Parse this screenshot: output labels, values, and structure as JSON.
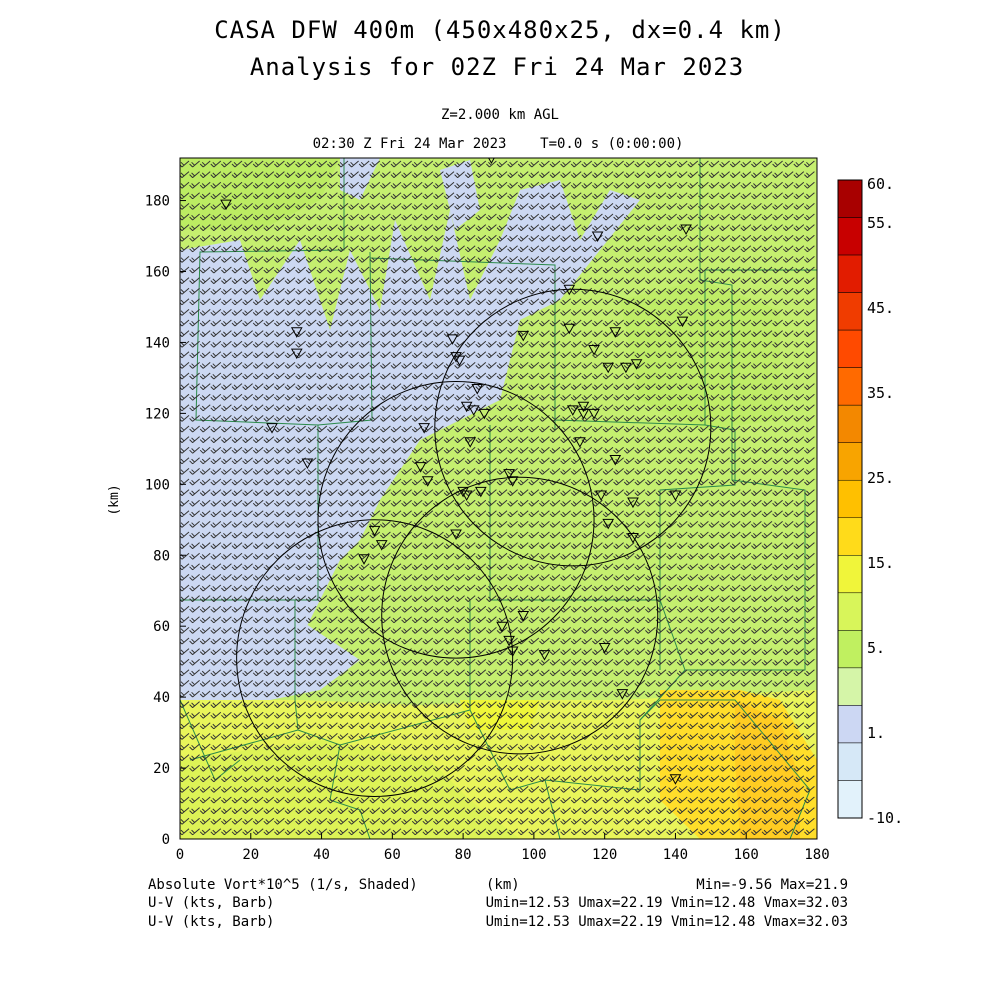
{
  "header": {
    "title": "CASA DFW 400m (450x480x25, dx=0.4 km)",
    "subtitle": "Analysis for 02Z Fri 24 Mar 2023",
    "level": "Z=2.000 km AGL",
    "time": "02:30 Z Fri 24 Mar 2023    T=0.0 s (0:00:00)"
  },
  "axes": {
    "x_ticks": [
      "0",
      "20",
      "40",
      "60",
      "80",
      "100",
      "120",
      "140",
      "160",
      "180"
    ],
    "y_ticks": [
      "0",
      "20",
      "40",
      "60",
      "80",
      "100",
      "120",
      "140",
      "160",
      "180"
    ],
    "x_label": "(km)",
    "y_label": "(km)",
    "xlim": [
      0,
      180
    ],
    "ylim": [
      0,
      192
    ]
  },
  "colorbar": {
    "labels": [
      "60.",
      "55.",
      "45.",
      "35.",
      "25.",
      "15.",
      "5.",
      "1.",
      "-10."
    ],
    "colors": [
      "#a80000",
      "#c80000",
      "#e21c00",
      "#f03c00",
      "#ff4a00",
      "#ff6a00",
      "#f38800",
      "#f8a400",
      "#ffc000",
      "#ffdb1a",
      "#f0f53a",
      "#d8f55a",
      "#c0f060",
      "#d5f5a8",
      "#ccd7f3",
      "#d6e8f7",
      "#e2f2fb"
    ]
  },
  "radars": [
    {
      "cx": 111,
      "cy": 116,
      "r": 39
    },
    {
      "cx": 78,
      "cy": 90,
      "r": 39
    },
    {
      "cx": 96,
      "cy": 63,
      "r": 39
    },
    {
      "cx": 55,
      "cy": 51,
      "r": 39
    }
  ],
  "stations": [
    [
      88,
      192
    ],
    [
      13,
      179
    ],
    [
      118,
      170
    ],
    [
      143,
      172
    ],
    [
      110,
      155
    ],
    [
      33,
      143
    ],
    [
      33,
      137
    ],
    [
      77,
      141
    ],
    [
      97,
      142
    ],
    [
      110,
      144
    ],
    [
      123,
      143
    ],
    [
      78,
      136
    ],
    [
      79,
      135
    ],
    [
      117,
      138
    ],
    [
      121,
      133
    ],
    [
      126,
      133
    ],
    [
      129,
      134
    ],
    [
      142,
      146
    ],
    [
      84,
      127
    ],
    [
      81,
      122
    ],
    [
      83,
      121
    ],
    [
      86,
      120
    ],
    [
      111,
      121
    ],
    [
      114,
      120
    ],
    [
      117,
      120
    ],
    [
      114,
      122
    ],
    [
      69,
      116
    ],
    [
      82,
      112
    ],
    [
      113,
      112
    ],
    [
      26,
      116
    ],
    [
      36,
      106
    ],
    [
      68,
      105
    ],
    [
      70,
      101
    ],
    [
      93,
      103
    ],
    [
      94,
      101
    ],
    [
      123,
      107
    ],
    [
      80,
      98
    ],
    [
      81,
      97
    ],
    [
      85,
      98
    ],
    [
      119,
      97
    ],
    [
      128,
      95
    ],
    [
      140,
      97
    ],
    [
      55,
      87
    ],
    [
      57,
      83
    ],
    [
      78,
      86
    ],
    [
      121,
      89
    ],
    [
      128,
      85
    ],
    [
      52,
      79
    ],
    [
      97,
      63
    ],
    [
      91,
      60
    ],
    [
      93,
      56
    ],
    [
      94,
      53
    ],
    [
      103,
      52
    ],
    [
      120,
      54
    ],
    [
      125,
      41
    ],
    [
      140,
      17
    ]
  ],
  "footer": {
    "field_label": "Absolute Vort*10^5 (1/s, Shaded)",
    "axis_unit": "(km)",
    "field_range": "Min=-9.56 Max=21.9",
    "wind_label_1": "U-V (kts, Barb)",
    "wind_range_1": "Umin=12.53 Umax=22.19 Vmin=12.48 Vmax=32.03",
    "wind_label_2": "U-V (kts, Barb)",
    "wind_range_2": "Umin=12.53 Umax=22.19 Vmin=12.48 Vmax=32.03"
  }
}
